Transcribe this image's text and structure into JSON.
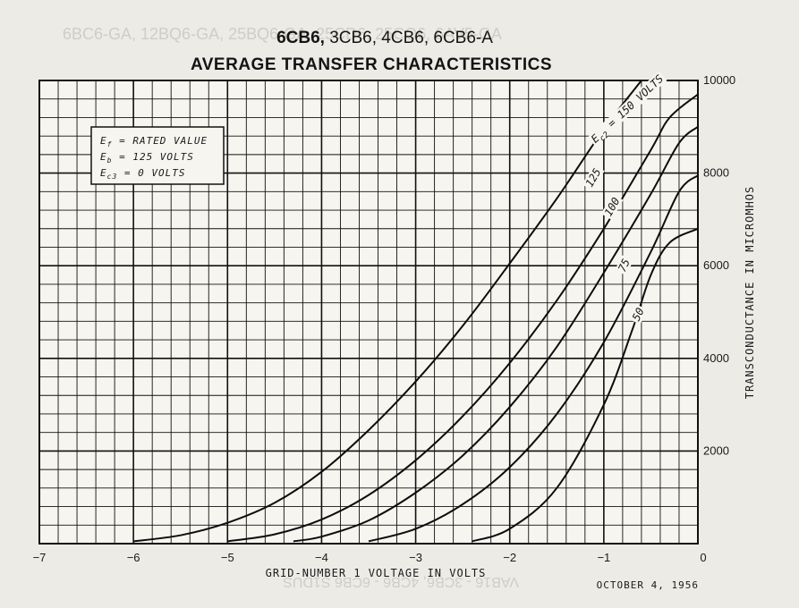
{
  "header": {
    "title_bold": "6CB6,",
    "title_rest": " 3CB6, 4CB6, 6CB6-A",
    "subtitle": "AVERAGE TRANSFER CHARACTERISTICS"
  },
  "conditions": {
    "ef_sym": "E",
    "ef_sub": "f",
    "ef_val": " = RATED VALUE",
    "eb_sym": "E",
    "eb_sub": "b",
    "eb_val": " = 125 VOLTS",
    "ec3_sym": "E",
    "ec3_sub": "c3",
    "ec3_val": " = 0 VOLTS"
  },
  "footer": {
    "date": "OCTOBER 4,  1956"
  },
  "bleed_through": {
    "top_text": "6BC6-GA, 12BQ6-GA, 25BQ6-GA, 25CD6, 25CQ6, 6AV5-GA",
    "bottom_text": "VAB16 - 3CB6, 4CB6 - 6CB6 S1DUS"
  },
  "chart_data": {
    "type": "line",
    "title": "6CB6, 3CB6, 4CB6, 6CB6-A",
    "subtitle": "AVERAGE TRANSFER CHARACTERISTICS",
    "xlabel": "GRID-NUMBER 1 VOLTAGE IN VOLTS",
    "ylabel": "TRANSCONDUCTANCE IN MICROMHOS",
    "xlim": [
      -7,
      0
    ],
    "ylim": [
      0,
      10000
    ],
    "grid": true,
    "x_ticks": [
      -7,
      -6,
      -5,
      -4,
      -3,
      -2,
      -1,
      0
    ],
    "x_tick_labels": [
      "−7",
      "−6",
      "−5",
      "−4",
      "−3",
      "−2",
      "−1",
      "0"
    ],
    "y_ticks": [
      2000,
      4000,
      6000,
      8000,
      10000
    ],
    "y_tick_labels": [
      "2000",
      "4000",
      "6000",
      "8000",
      "10000"
    ],
    "series": [
      {
        "name": "Ec2 = 150 VOLTS",
        "label_prefix": "E",
        "label_sub": "c2",
        "label_suffix": " = 150 VOLTS",
        "x": [
          -6.0,
          -5.5,
          -5.0,
          -4.5,
          -4.0,
          -3.5,
          -3.0,
          -2.5,
          -2.0,
          -1.5,
          -1.0,
          -0.6
        ],
        "y": [
          50,
          180,
          450,
          880,
          1550,
          2450,
          3500,
          4700,
          6050,
          7450,
          8950,
          10000
        ]
      },
      {
        "name": "125",
        "x": [
          -5.0,
          -4.5,
          -4.0,
          -3.5,
          -3.0,
          -2.5,
          -2.0,
          -1.5,
          -1.0,
          -0.5,
          -0.3,
          0.0
        ],
        "y": [
          50,
          200,
          520,
          1050,
          1800,
          2750,
          3900,
          5250,
          6800,
          8500,
          9200,
          9700
        ]
      },
      {
        "name": "100",
        "x": [
          -4.3,
          -4.0,
          -3.5,
          -3.0,
          -2.5,
          -2.0,
          -1.5,
          -1.0,
          -0.5,
          -0.2,
          0.0
        ],
        "y": [
          50,
          150,
          500,
          1100,
          1900,
          2950,
          4250,
          5850,
          7550,
          8650,
          9000
        ]
      },
      {
        "name": "75",
        "x": [
          -3.5,
          -3.0,
          -2.5,
          -2.0,
          -1.5,
          -1.0,
          -0.5,
          -0.2,
          0.0
        ],
        "y": [
          50,
          320,
          850,
          1650,
          2800,
          4350,
          6300,
          7600,
          7950
        ]
      },
      {
        "name": "50",
        "x": [
          -2.4,
          -2.0,
          -1.5,
          -1.0,
          -0.7,
          -0.5,
          -0.3,
          0.0
        ],
        "y": [
          50,
          320,
          1200,
          3000,
          4600,
          5800,
          6500,
          6800
        ]
      }
    ]
  }
}
